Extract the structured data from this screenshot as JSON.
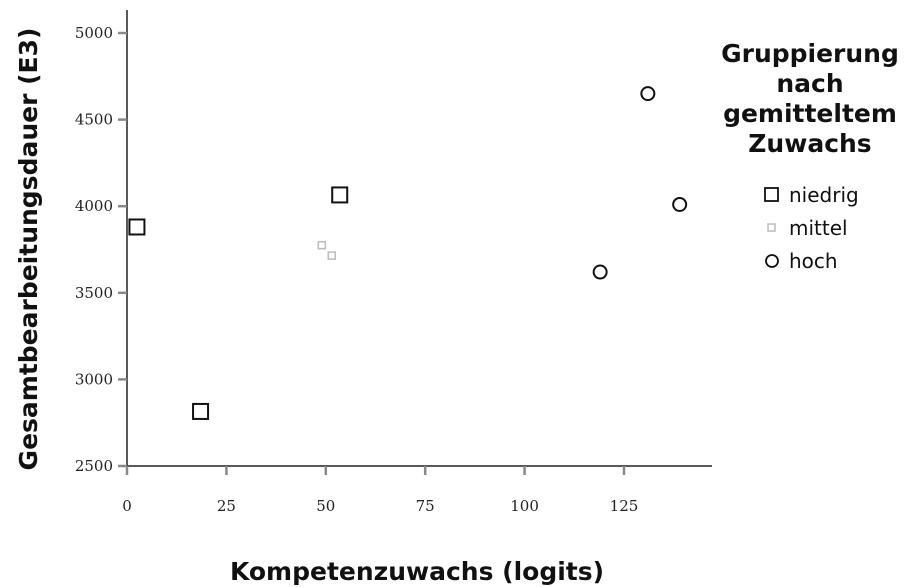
{
  "chart_data": {
    "type": "scatter",
    "title": "",
    "xlabel": "Kompetenzuwachs (logits)",
    "ylabel": "Gesamtbearbeitungsdauer (E3)",
    "xlim": [
      0,
      148
    ],
    "ylim": [
      2500,
      5130
    ],
    "xticks": [
      0,
      25,
      50,
      75,
      100,
      125
    ],
    "yticks": [
      2500,
      3000,
      3500,
      4000,
      4500,
      5000
    ],
    "grid": false,
    "legend": {
      "title": "Gruppierung\nnach\ngemitteltem\nZuwachs",
      "placement": "right"
    },
    "series": [
      {
        "name": "niedrig",
        "marker": "square",
        "color": "#111111",
        "points": [
          {
            "x": 2.5,
            "y": 3880
          },
          {
            "x": 18.5,
            "y": 2815
          },
          {
            "x": 53.5,
            "y": 4065
          }
        ]
      },
      {
        "name": "mittel",
        "marker": "small-square",
        "color": "#bbbbbb",
        "points": [
          {
            "x": 49,
            "y": 3775
          },
          {
            "x": 51.5,
            "y": 3715
          }
        ]
      },
      {
        "name": "hoch",
        "marker": "circle",
        "color": "#111111",
        "points": [
          {
            "x": 119,
            "y": 3620
          },
          {
            "x": 131,
            "y": 4650
          },
          {
            "x": 139,
            "y": 4010
          }
        ]
      }
    ]
  }
}
